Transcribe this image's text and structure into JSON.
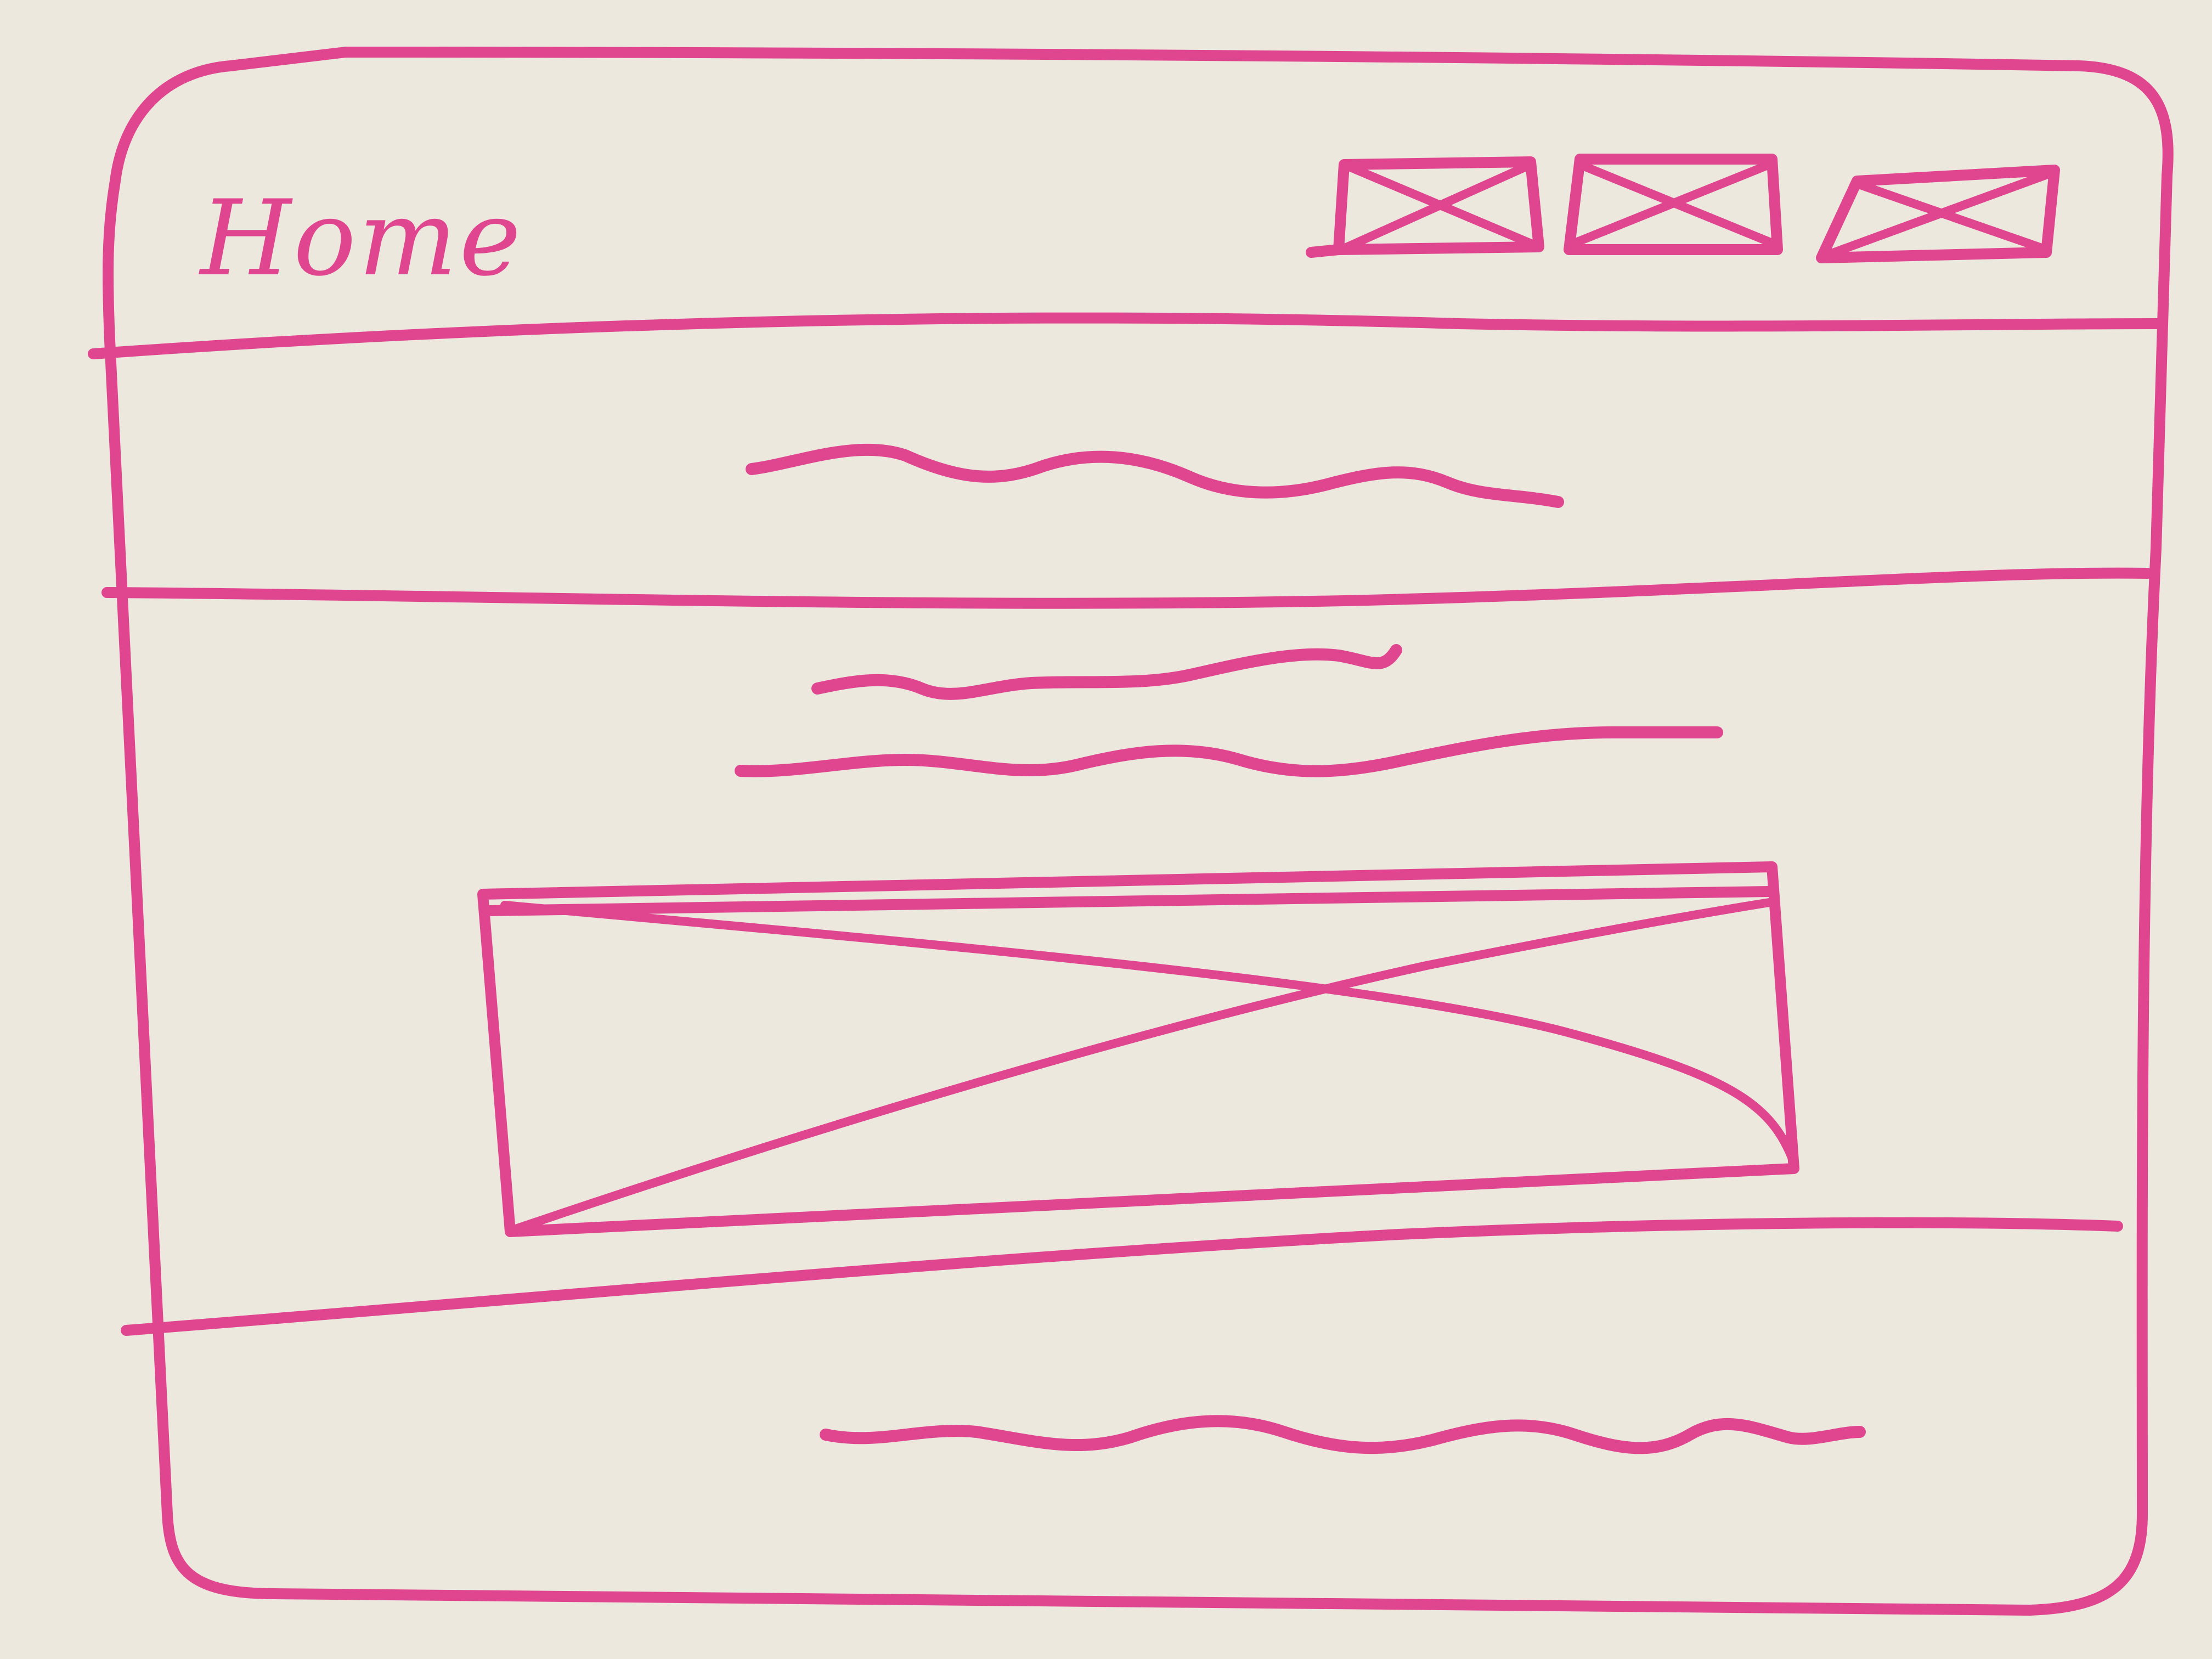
{
  "header": {
    "title": "Home",
    "nav_icons": [
      "image-placeholder-icon",
      "image-placeholder-icon",
      "image-placeholder-icon"
    ]
  },
  "colors": {
    "ink": "#e0458f",
    "board": "#ece8dd"
  }
}
